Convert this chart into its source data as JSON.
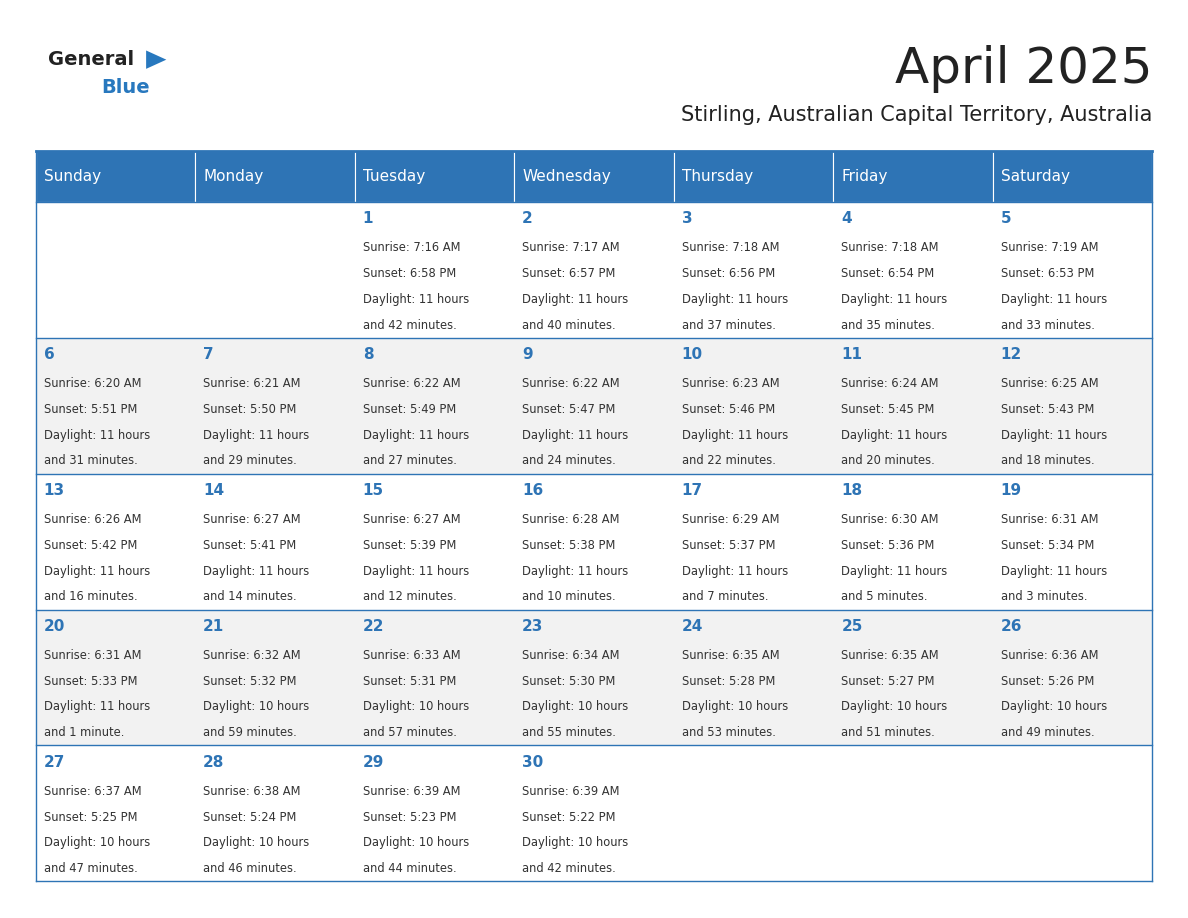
{
  "title": "April 2025",
  "subtitle": "Stirling, Australian Capital Territory, Australia",
  "header_bg_color": "#2E74B5",
  "header_text_color": "#FFFFFF",
  "row_bg_even": "#FFFFFF",
  "row_bg_odd": "#F2F2F2",
  "day_number_color": "#2E74B5",
  "cell_text_color": "#333333",
  "days_of_week": [
    "Sunday",
    "Monday",
    "Tuesday",
    "Wednesday",
    "Thursday",
    "Friday",
    "Saturday"
  ],
  "logo_color1": "#222222",
  "logo_color2": "#2878BE",
  "title_color": "#222222",
  "subtitle_color": "#222222",
  "calendar": [
    [
      {
        "day": null,
        "sunrise": null,
        "sunset": null,
        "daylight": null
      },
      {
        "day": null,
        "sunrise": null,
        "sunset": null,
        "daylight": null
      },
      {
        "day": 1,
        "sunrise": "7:16 AM",
        "sunset": "6:58 PM",
        "daylight": "11 hours and 42 minutes."
      },
      {
        "day": 2,
        "sunrise": "7:17 AM",
        "sunset": "6:57 PM",
        "daylight": "11 hours and 40 minutes."
      },
      {
        "day": 3,
        "sunrise": "7:18 AM",
        "sunset": "6:56 PM",
        "daylight": "11 hours and 37 minutes."
      },
      {
        "day": 4,
        "sunrise": "7:18 AM",
        "sunset": "6:54 PM",
        "daylight": "11 hours and 35 minutes."
      },
      {
        "day": 5,
        "sunrise": "7:19 AM",
        "sunset": "6:53 PM",
        "daylight": "11 hours and 33 minutes."
      }
    ],
    [
      {
        "day": 6,
        "sunrise": "6:20 AM",
        "sunset": "5:51 PM",
        "daylight": "11 hours and 31 minutes."
      },
      {
        "day": 7,
        "sunrise": "6:21 AM",
        "sunset": "5:50 PM",
        "daylight": "11 hours and 29 minutes."
      },
      {
        "day": 8,
        "sunrise": "6:22 AM",
        "sunset": "5:49 PM",
        "daylight": "11 hours and 27 minutes."
      },
      {
        "day": 9,
        "sunrise": "6:22 AM",
        "sunset": "5:47 PM",
        "daylight": "11 hours and 24 minutes."
      },
      {
        "day": 10,
        "sunrise": "6:23 AM",
        "sunset": "5:46 PM",
        "daylight": "11 hours and 22 minutes."
      },
      {
        "day": 11,
        "sunrise": "6:24 AM",
        "sunset": "5:45 PM",
        "daylight": "11 hours and 20 minutes."
      },
      {
        "day": 12,
        "sunrise": "6:25 AM",
        "sunset": "5:43 PM",
        "daylight": "11 hours and 18 minutes."
      }
    ],
    [
      {
        "day": 13,
        "sunrise": "6:26 AM",
        "sunset": "5:42 PM",
        "daylight": "11 hours and 16 minutes."
      },
      {
        "day": 14,
        "sunrise": "6:27 AM",
        "sunset": "5:41 PM",
        "daylight": "11 hours and 14 minutes."
      },
      {
        "day": 15,
        "sunrise": "6:27 AM",
        "sunset": "5:39 PM",
        "daylight": "11 hours and 12 minutes."
      },
      {
        "day": 16,
        "sunrise": "6:28 AM",
        "sunset": "5:38 PM",
        "daylight": "11 hours and 10 minutes."
      },
      {
        "day": 17,
        "sunrise": "6:29 AM",
        "sunset": "5:37 PM",
        "daylight": "11 hours and 7 minutes."
      },
      {
        "day": 18,
        "sunrise": "6:30 AM",
        "sunset": "5:36 PM",
        "daylight": "11 hours and 5 minutes."
      },
      {
        "day": 19,
        "sunrise": "6:31 AM",
        "sunset": "5:34 PM",
        "daylight": "11 hours and 3 minutes."
      }
    ],
    [
      {
        "day": 20,
        "sunrise": "6:31 AM",
        "sunset": "5:33 PM",
        "daylight": "11 hours and 1 minute."
      },
      {
        "day": 21,
        "sunrise": "6:32 AM",
        "sunset": "5:32 PM",
        "daylight": "10 hours and 59 minutes."
      },
      {
        "day": 22,
        "sunrise": "6:33 AM",
        "sunset": "5:31 PM",
        "daylight": "10 hours and 57 minutes."
      },
      {
        "day": 23,
        "sunrise": "6:34 AM",
        "sunset": "5:30 PM",
        "daylight": "10 hours and 55 minutes."
      },
      {
        "day": 24,
        "sunrise": "6:35 AM",
        "sunset": "5:28 PM",
        "daylight": "10 hours and 53 minutes."
      },
      {
        "day": 25,
        "sunrise": "6:35 AM",
        "sunset": "5:27 PM",
        "daylight": "10 hours and 51 minutes."
      },
      {
        "day": 26,
        "sunrise": "6:36 AM",
        "sunset": "5:26 PM",
        "daylight": "10 hours and 49 minutes."
      }
    ],
    [
      {
        "day": 27,
        "sunrise": "6:37 AM",
        "sunset": "5:25 PM",
        "daylight": "10 hours and 47 minutes."
      },
      {
        "day": 28,
        "sunrise": "6:38 AM",
        "sunset": "5:24 PM",
        "daylight": "10 hours and 46 minutes."
      },
      {
        "day": 29,
        "sunrise": "6:39 AM",
        "sunset": "5:23 PM",
        "daylight": "10 hours and 44 minutes."
      },
      {
        "day": 30,
        "sunrise": "6:39 AM",
        "sunset": "5:22 PM",
        "daylight": "10 hours and 42 minutes."
      },
      {
        "day": null,
        "sunrise": null,
        "sunset": null,
        "daylight": null
      },
      {
        "day": null,
        "sunrise": null,
        "sunset": null,
        "daylight": null
      },
      {
        "day": null,
        "sunrise": null,
        "sunset": null,
        "daylight": null
      }
    ]
  ]
}
